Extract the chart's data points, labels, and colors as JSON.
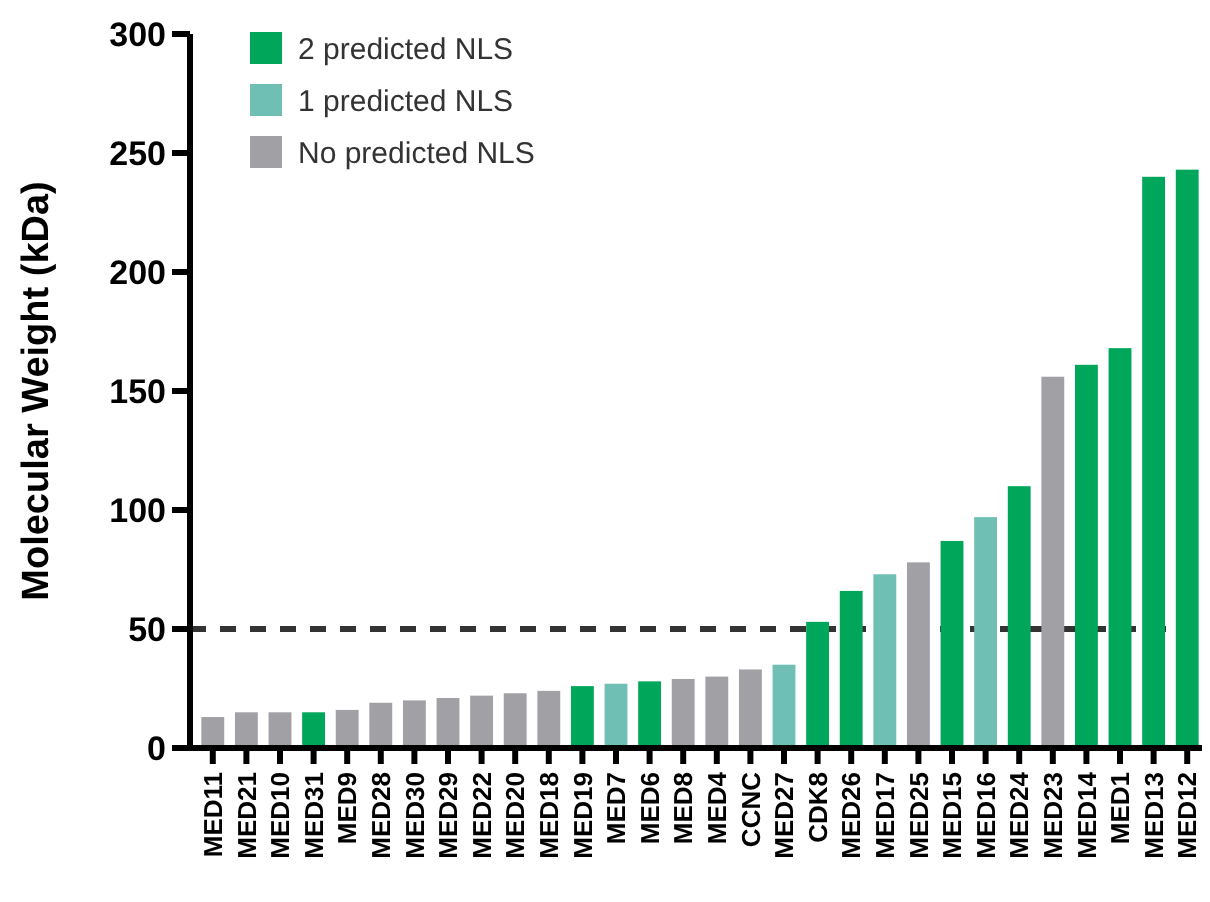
{
  "chart_data": {
    "type": "bar",
    "stacked": true,
    "ylabel": "Molecular Weight (kDa)",
    "categories": [
      "MED11",
      "MED21",
      "MED10",
      "MED31",
      "MED9",
      "MED28",
      "MED30",
      "MED29",
      "MED22",
      "MED20",
      "MED18",
      "MED19",
      "MED7",
      "MED6",
      "MED8",
      "MED4",
      "CCNC",
      "MED27",
      "CDK8",
      "MED26",
      "MED17",
      "MED25",
      "MED15",
      "MED16",
      "MED24",
      "MED23",
      "MED14",
      "MED1",
      "MED13",
      "MED12"
    ],
    "series": [
      {
        "name": "2 predicted NLS",
        "color": "#00a65a",
        "values": [
          null,
          null,
          null,
          15,
          null,
          null,
          null,
          null,
          null,
          null,
          null,
          26,
          null,
          28,
          null,
          null,
          null,
          null,
          53,
          66,
          null,
          null,
          87,
          null,
          110,
          null,
          161,
          168,
          240,
          243
        ]
      },
      {
        "name": "1 predicted NLS",
        "color": "#6fbfb5",
        "values": [
          null,
          null,
          null,
          null,
          null,
          null,
          null,
          null,
          null,
          null,
          null,
          null,
          27,
          null,
          null,
          null,
          null,
          35,
          null,
          null,
          73,
          null,
          null,
          97,
          null,
          null,
          null,
          null,
          null,
          null
        ]
      },
      {
        "name": "No predicted NLS",
        "color": "#a0a0a5",
        "values": [
          13,
          15,
          15,
          null,
          16,
          19,
          20,
          21,
          22,
          23,
          24,
          null,
          null,
          null,
          29,
          30,
          33,
          null,
          null,
          null,
          null,
          78,
          null,
          null,
          null,
          156,
          null,
          null,
          null,
          null
        ]
      }
    ],
    "ylim": [
      0,
      300
    ],
    "yticks": [
      0,
      50,
      100,
      150,
      200,
      250,
      300
    ],
    "ref_lines": [
      {
        "axis": "y",
        "value": 50,
        "line_style": "dashed",
        "color": "#333333"
      }
    ],
    "legend": "top left"
  }
}
